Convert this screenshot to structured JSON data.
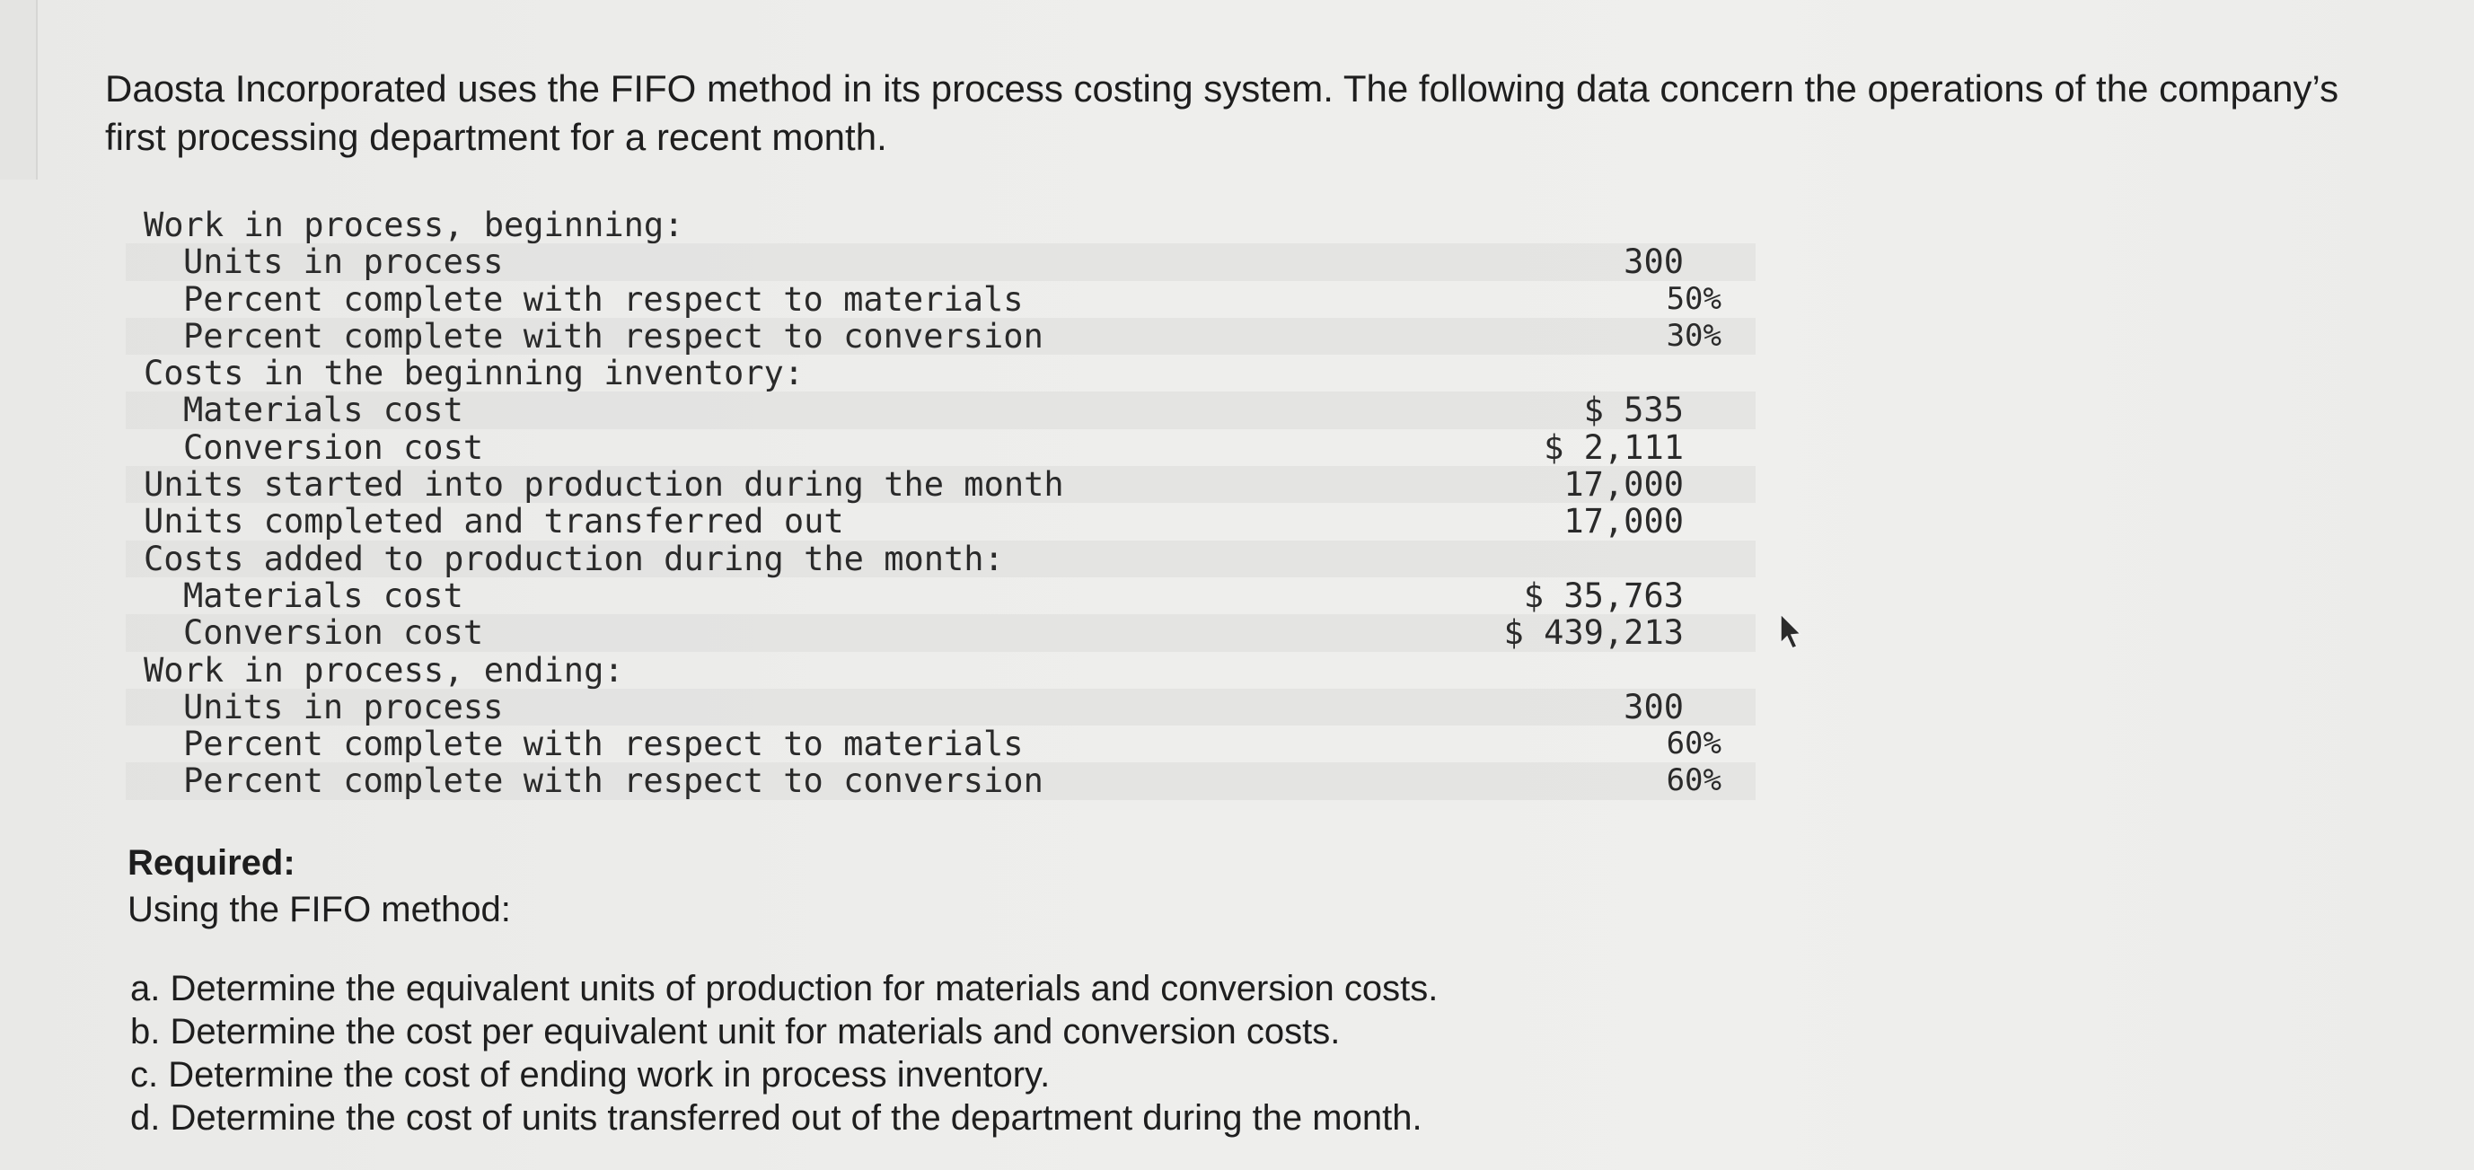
{
  "intro": {
    "line1": "Daosta Incorporated uses the FIFO method in its process costing system. The following data concern the operations of the company’s",
    "line2": "first processing department for a recent month."
  },
  "data_table": [
    {
      "label": "Work in process, beginning:",
      "value": "",
      "indent": false
    },
    {
      "label": "Units in process",
      "value": "300",
      "indent": true
    },
    {
      "label": "Percent complete with respect to materials",
      "value": "50%",
      "indent": true,
      "pct": true
    },
    {
      "label": "Percent complete with respect to conversion",
      "value": "30%",
      "indent": true,
      "pct": true
    },
    {
      "label": "Costs in the beginning inventory:",
      "value": "",
      "indent": false
    },
    {
      "label": "Materials cost",
      "value": "$ 535",
      "indent": true
    },
    {
      "label": "Conversion cost",
      "value": "$ 2,111",
      "indent": true
    },
    {
      "label": "Units started into production during the month",
      "value": "17,000",
      "indent": false
    },
    {
      "label": "Units completed and transferred out",
      "value": "17,000",
      "indent": false
    },
    {
      "label": "Costs added to production during the month:",
      "value": "",
      "indent": false
    },
    {
      "label": "Materials cost",
      "value": "$ 35,763",
      "indent": true
    },
    {
      "label": "Conversion cost",
      "value": "$ 439,213",
      "indent": true
    },
    {
      "label": "Work in process, ending:",
      "value": "",
      "indent": false
    },
    {
      "label": "Units in process",
      "value": "300",
      "indent": true
    },
    {
      "label": "Percent complete with respect to materials",
      "value": "60%",
      "indent": true,
      "pct": true
    },
    {
      "label": "Percent complete with respect to conversion",
      "value": "60%",
      "indent": true,
      "pct": true
    }
  ],
  "required": {
    "heading": "Required:",
    "subheading": "Using the FIFO method:"
  },
  "tasks": [
    "a. Determine the equivalent units of production for materials and conversion costs.",
    "b. Determine the cost per equivalent unit for materials and conversion costs.",
    "c. Determine the cost of ending work in process inventory.",
    "d. Determine the cost of units transferred out of the department during the month."
  ]
}
